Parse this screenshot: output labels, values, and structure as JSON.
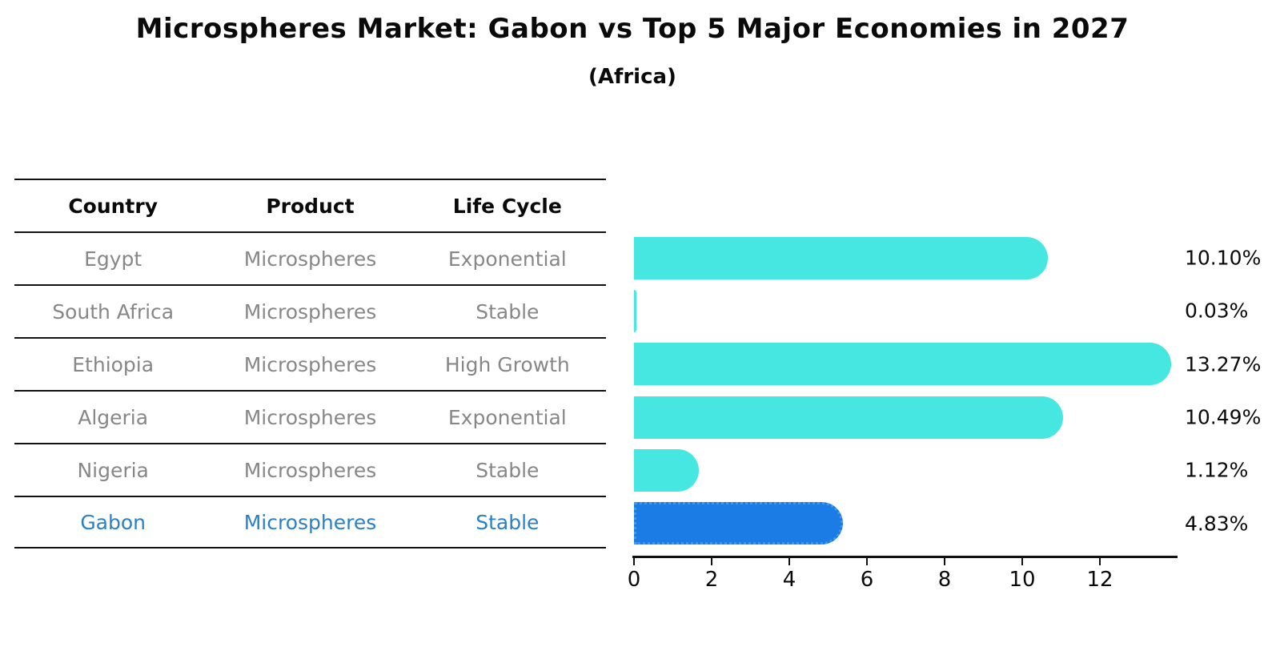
{
  "title": "Microspheres Market: Gabon vs Top 5 Major Economies in 2027",
  "subtitle": "(Africa)",
  "table": {
    "headers": {
      "country": "Country",
      "product": "Product",
      "life_cycle": "Life Cycle"
    },
    "rows": [
      {
        "country": "Egypt",
        "product": "Microspheres",
        "life_cycle": "Exponential"
      },
      {
        "country": "South Africa",
        "product": "Microspheres",
        "life_cycle": "Stable"
      },
      {
        "country": "Ethiopia",
        "product": "Microspheres",
        "life_cycle": "High Growth"
      },
      {
        "country": "Algeria",
        "product": "Microspheres",
        "life_cycle": "Exponential"
      },
      {
        "country": "Nigeria",
        "product": "Microspheres",
        "life_cycle": "Stable"
      },
      {
        "country": "Gabon",
        "product": "Microspheres",
        "life_cycle": "Stable"
      }
    ]
  },
  "chart_data": {
    "type": "bar",
    "orientation": "horizontal",
    "categories": [
      "Egypt",
      "South Africa",
      "Ethiopia",
      "Algeria",
      "Nigeria",
      "Gabon"
    ],
    "values": [
      10.1,
      0.03,
      13.27,
      10.49,
      1.12,
      4.83
    ],
    "value_labels": [
      "10.10%",
      "0.03%",
      "13.27%",
      "10.49%",
      "1.12%",
      "4.83%"
    ],
    "xticks": [
      "0",
      "2",
      "4",
      "6",
      "8",
      "10",
      "12"
    ],
    "xlim": [
      0,
      14
    ],
    "grid": false,
    "legend": false,
    "bar_color": "#45E7E0",
    "highlight_index": 5,
    "highlight_color": "#1B7CE5",
    "highlight_border_color": "#3F97F0",
    "highlight_text_color": "#2980C9",
    "axis_color": "#111111"
  }
}
